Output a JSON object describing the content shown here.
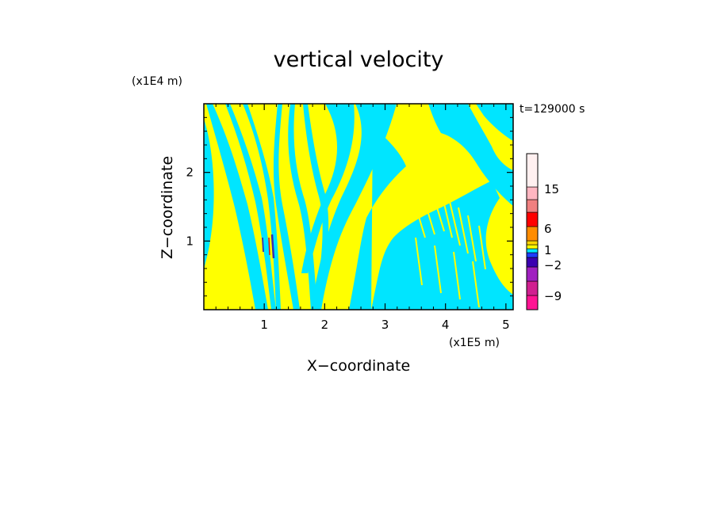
{
  "chart_data": {
    "type": "heatmap",
    "title": "vertical velocity",
    "time_label": "t=129000 s",
    "xlabel": "X−coordinate",
    "ylabel": "Z−coordinate",
    "x_scale_label": "(x1E5 m)",
    "y_scale_label": "(x1E4 m)",
    "xlim": [
      0,
      5.12
    ],
    "ylim": [
      0,
      3.0
    ],
    "x_ticks": [
      1,
      2,
      3,
      4,
      5
    ],
    "y_ticks": [
      1,
      2
    ],
    "x_tick_labels": [
      "1",
      "2",
      "3",
      "4",
      "5"
    ],
    "y_tick_labels": [
      "1",
      "2"
    ],
    "field_colors": {
      "positive": "#ffff00",
      "negative": "#00e5ff",
      "strong_negative": "#3a2db0",
      "strong_positive": "#cc1020"
    },
    "colorbar": {
      "levels_bottom_to_top": [
        {
          "color": "#ff1493"
        },
        {
          "color": "#d02090"
        },
        {
          "color": "#a020c0"
        },
        {
          "color": "#3a00b0"
        },
        {
          "color": "#1e3cff"
        },
        {
          "color": "#00e5ff"
        },
        {
          "color": "#ffff00"
        },
        {
          "color": "#ffd400"
        },
        {
          "color": "#ff8c00"
        },
        {
          "color": "#ff0000"
        },
        {
          "color": "#f08080"
        },
        {
          "color": "#ffb6c1"
        },
        {
          "color": "#fff0f0"
        }
      ],
      "tick_labels": [
        "−9",
        "−2",
        "1",
        "6",
        "15"
      ]
    }
  }
}
